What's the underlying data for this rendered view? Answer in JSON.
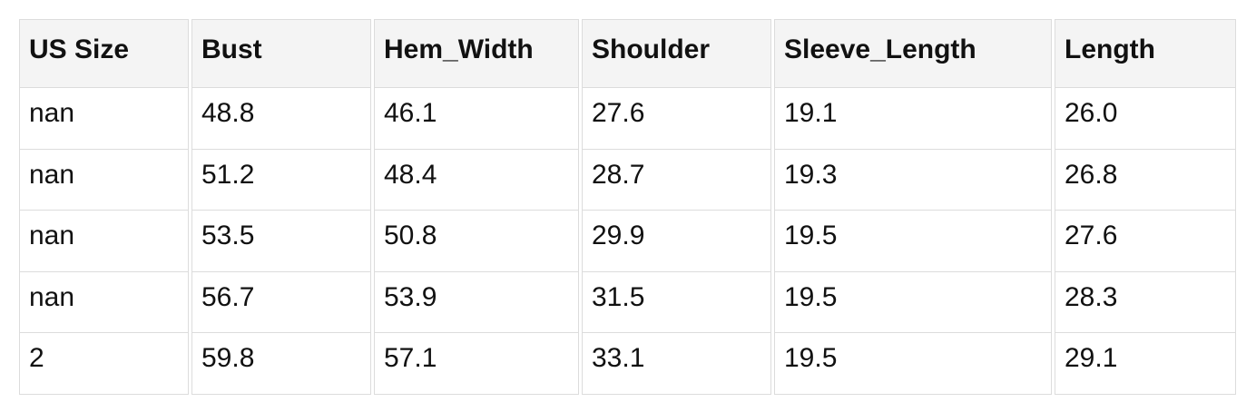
{
  "chart_data": {
    "type": "table",
    "title": "",
    "columns": [
      "US Size",
      "Bust",
      "Hem_Width",
      "Shoulder",
      "Sleeve_Length",
      "Length"
    ],
    "rows": [
      [
        "nan",
        "48.8",
        "46.1",
        "27.6",
        "19.1",
        "26.0"
      ],
      [
        "nan",
        "51.2",
        "48.4",
        "28.7",
        "19.3",
        "26.8"
      ],
      [
        "nan",
        "53.5",
        "50.8",
        "29.9",
        "19.5",
        "27.6"
      ],
      [
        "nan",
        "56.7",
        "53.9",
        "31.5",
        "19.5",
        "28.3"
      ],
      [
        "2",
        "59.8",
        "57.1",
        "33.1",
        "19.5",
        "29.1"
      ]
    ]
  },
  "colors": {
    "header_background": "#f4f4f4",
    "cell_background": "#ffffff",
    "border": "#dcdcdc",
    "text": "#111111",
    "page_background": "#ffffff"
  }
}
